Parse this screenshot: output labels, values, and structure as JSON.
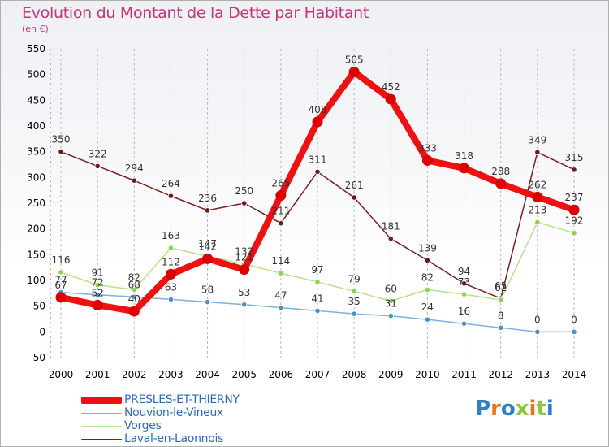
{
  "header": {
    "title": "Evolution du Montant de la Dette par Habitant",
    "unit": "(en €)"
  },
  "chart_data": {
    "type": "line",
    "title": "Evolution du Montant de la Dette par Habitant",
    "subtitle": "(en €)",
    "xlabel": "",
    "ylabel": "",
    "x": [
      "2000",
      "2001",
      "2002",
      "2003",
      "2004",
      "2005",
      "2006",
      "2007",
      "2008",
      "2009",
      "2010",
      "2011",
      "2012",
      "2013",
      "2014"
    ],
    "ylim": [
      -50,
      550
    ],
    "yticks": [
      -50,
      0,
      50,
      100,
      150,
      200,
      250,
      300,
      350,
      400,
      450,
      500,
      550
    ],
    "grid": "vertical dashed",
    "legend_position": "bottom-left",
    "series": [
      {
        "name": "Laval-en-Laonnois",
        "color": "#7a2020",
        "point_color": "#6b1a1a",
        "values": [
          350,
          322,
          294,
          264,
          236,
          250,
          211,
          311,
          261,
          181,
          139,
          94,
          65,
          349,
          315
        ]
      },
      {
        "name": "Vorges",
        "color": "#b5e38a",
        "point_color": "#8ed14a",
        "values": [
          116,
          91,
          82,
          163,
          147,
          132,
          114,
          97,
          79,
          60,
          82,
          73,
          62,
          213,
          192
        ]
      },
      {
        "name": "Nouvion-le-Vineux",
        "color": "#7fb0dc",
        "point_color": "#4a90d0",
        "values": [
          77,
          72,
          68,
          63,
          58,
          53,
          47,
          41,
          35,
          31,
          24,
          16,
          8,
          0,
          0
        ]
      },
      {
        "name": "PRESLES-ET-THIERNY",
        "color": "#ee1111",
        "point_color": "#dd0000",
        "values": [
          67,
          52,
          40,
          112,
          142,
          121,
          265,
          408,
          505,
          452,
          333,
          318,
          288,
          262,
          237
        ]
      }
    ]
  },
  "legend": {
    "items": [
      {
        "label": "PRESLES-ET-THIERNY",
        "color": "#ee1111"
      },
      {
        "label": "Nouvion-le-Vineux",
        "color": "#7fb0dc"
      },
      {
        "label": "Vorges",
        "color": "#b5e38a"
      },
      {
        "label": "Laval-en-Laonnois",
        "color": "#7a2020"
      }
    ]
  },
  "logo": {
    "text": "Proxiti",
    "letter_colors": [
      "#2e7fc8",
      "#e8731a",
      "#2e7fc8",
      "#8cc63f",
      "#e8731a",
      "#8cc63f",
      "#2e7fc8"
    ]
  }
}
